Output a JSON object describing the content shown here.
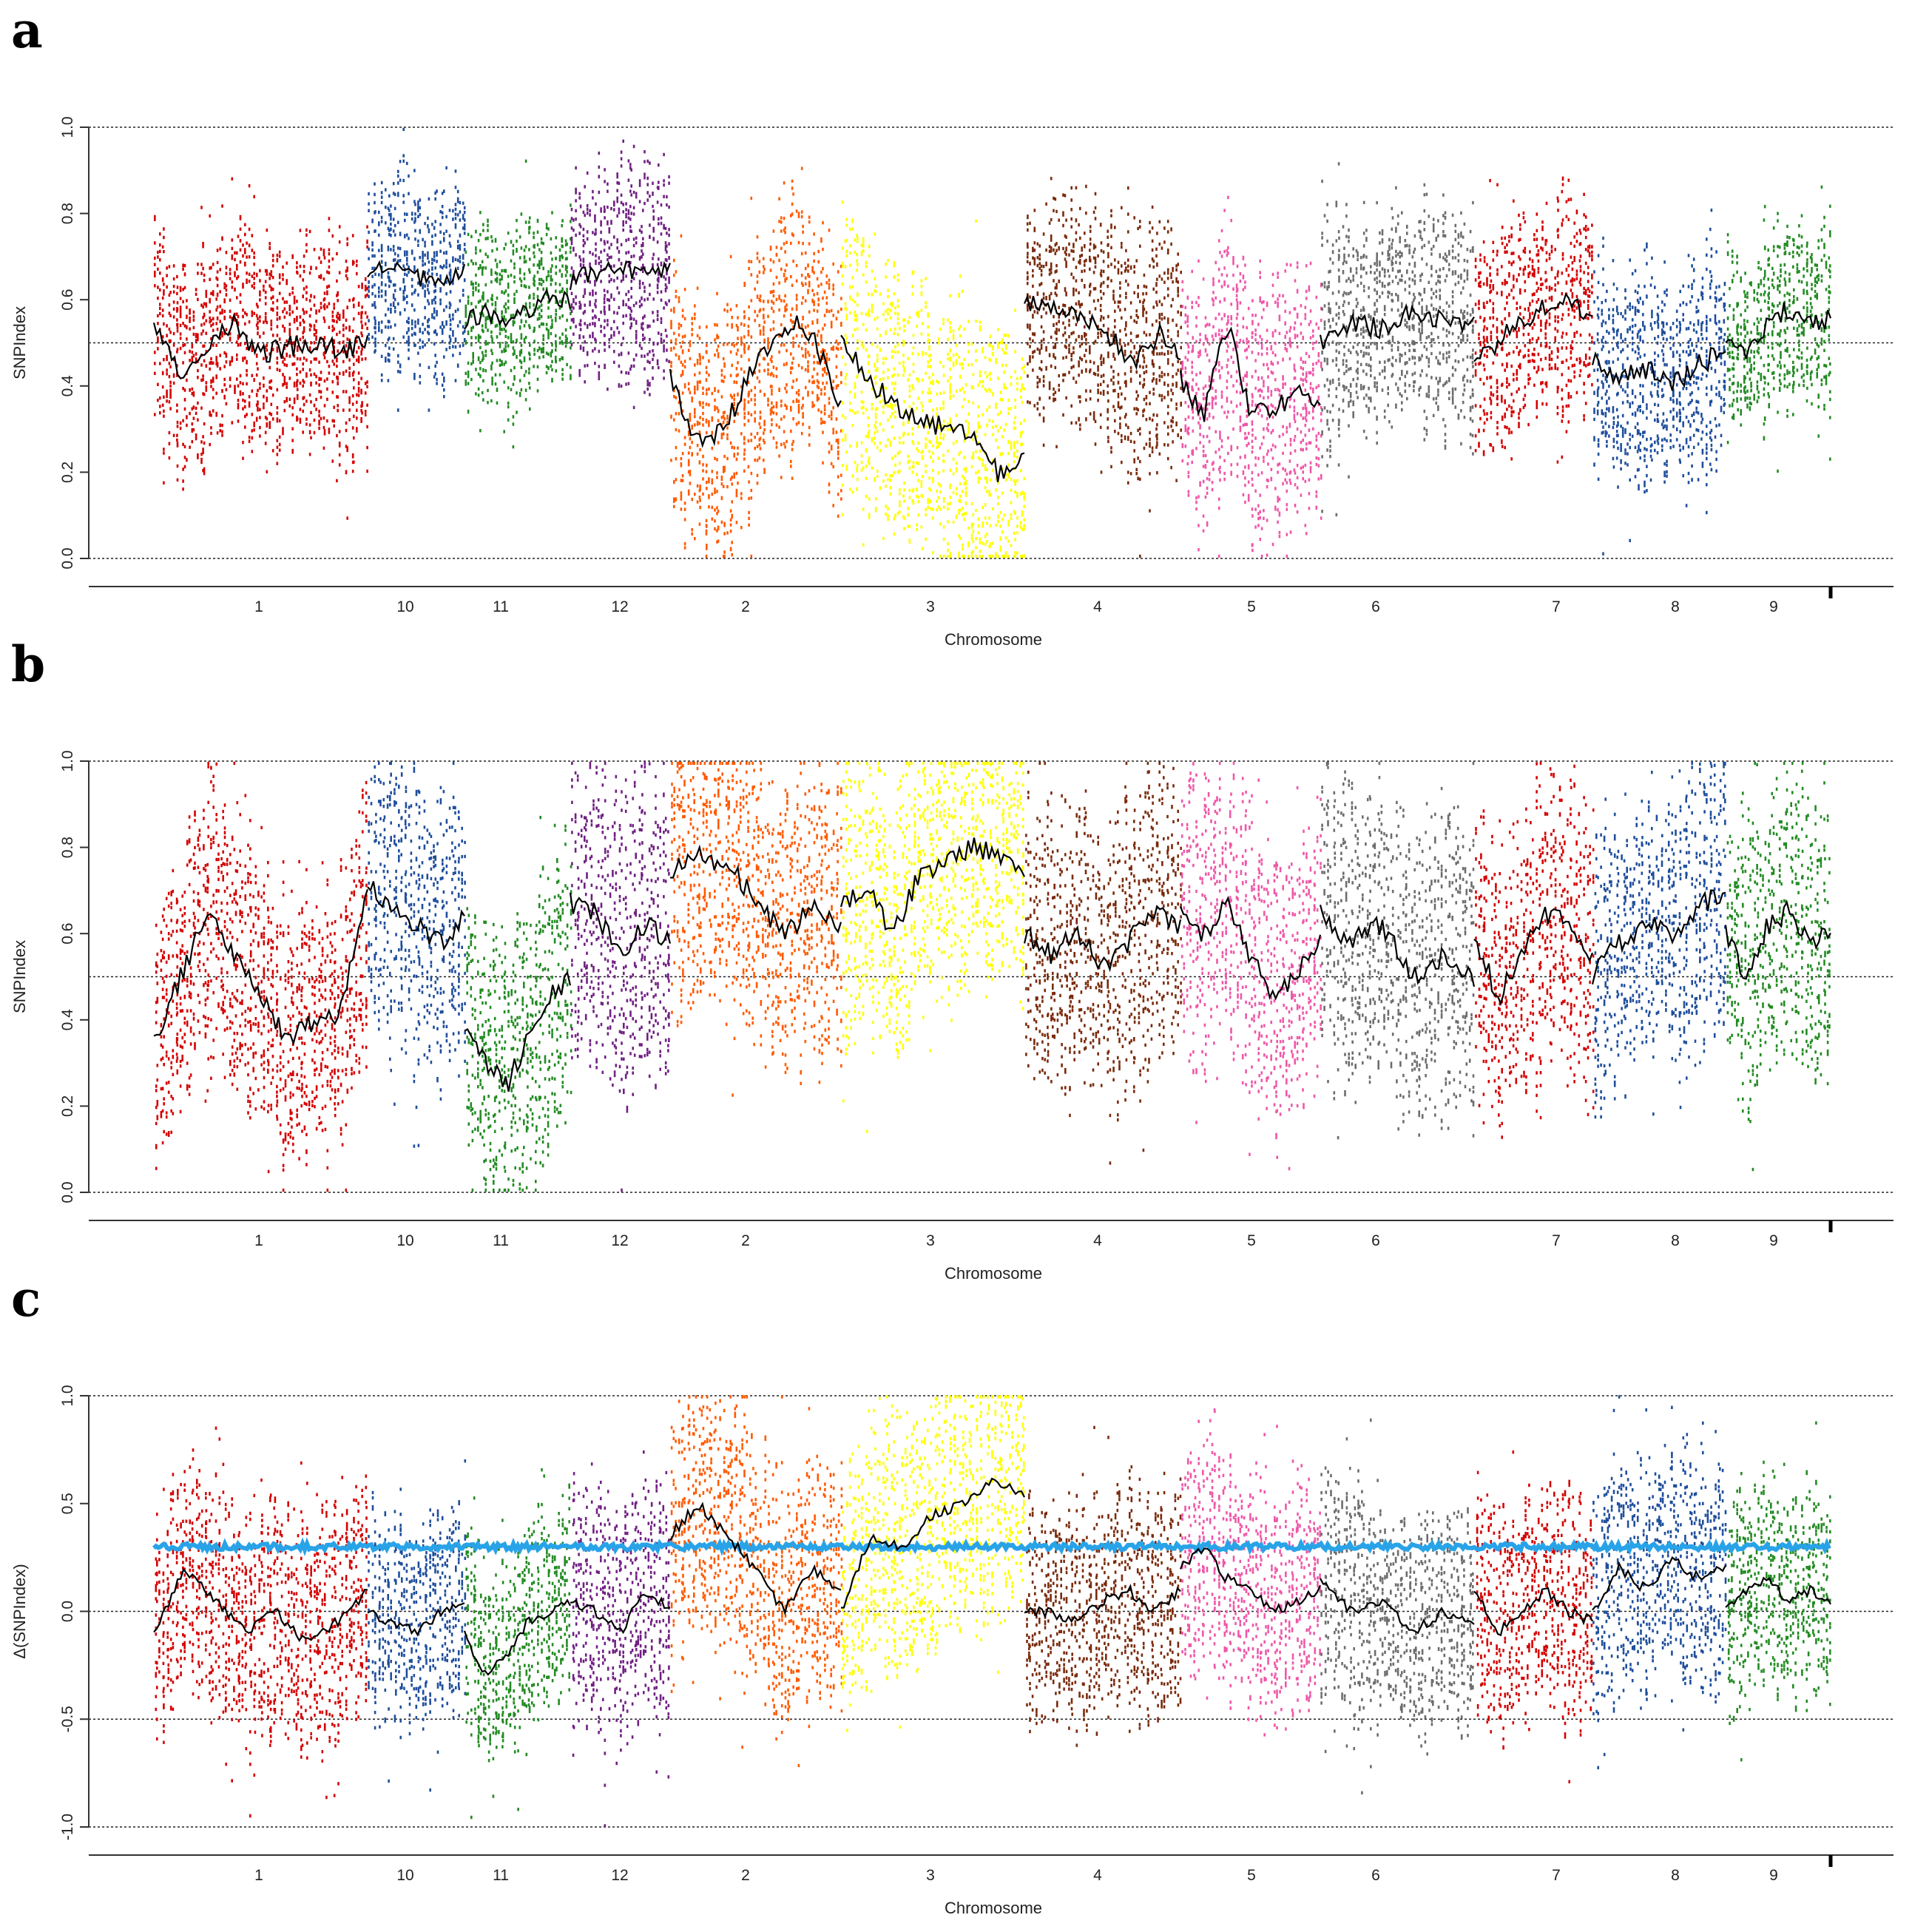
{
  "chart_data": [
    {
      "panel": "a",
      "type": "scatter",
      "xlabel": "Chromosome",
      "ylabel": "SNPIndex",
      "ylim": [
        0,
        1
      ],
      "yticks": [
        0.0,
        0.2,
        0.4,
        0.6,
        0.8,
        1.0
      ],
      "ytick_labels": [
        "0.0",
        "0.2",
        "0.4",
        "0.6",
        "0.8",
        "1.0"
      ],
      "reference_lines": [
        0,
        0.5,
        1
      ],
      "threshold_line": null,
      "chromosomes": [
        {
          "name": "1",
          "color": "#d40000",
          "mean": 0.49,
          "spread": 0.26,
          "trend": [
            0.55,
            0.42,
            0.48,
            0.55,
            0.47,
            0.49,
            0.5,
            0.48,
            0.5
          ]
        },
        {
          "name": "10",
          "color": "#1f4e9c",
          "mean": 0.66,
          "spread": 0.24,
          "trend": [
            0.66,
            0.68,
            0.65,
            0.64,
            0.66
          ]
        },
        {
          "name": "11",
          "color": "#238b23",
          "mean": 0.56,
          "spread": 0.22,
          "trend": [
            0.55,
            0.57,
            0.54,
            0.58,
            0.6,
            0.6
          ]
        },
        {
          "name": "12",
          "color": "#702082",
          "mean": 0.66,
          "spread": 0.26,
          "trend": [
            0.64,
            0.66,
            0.68,
            0.65,
            0.67
          ]
        },
        {
          "name": "2",
          "color": "#ff5a00",
          "mean": 0.4,
          "spread": 0.3,
          "trend": [
            0.42,
            0.3,
            0.27,
            0.35,
            0.45,
            0.5,
            0.56,
            0.48,
            0.36
          ]
        },
        {
          "name": "3",
          "color": "#ffff00",
          "mean": 0.3,
          "spread": 0.32,
          "trend": [
            0.52,
            0.42,
            0.36,
            0.33,
            0.3,
            0.28,
            0.2,
            0.22
          ]
        },
        {
          "name": "4",
          "color": "#7a2a0c",
          "mean": 0.55,
          "spread": 0.28,
          "trend": [
            0.6,
            0.59,
            0.58,
            0.55,
            0.5,
            0.46,
            0.52,
            0.48
          ]
        },
        {
          "name": "5",
          "color": "#ef57a8",
          "mean": 0.4,
          "spread": 0.3,
          "trend": [
            0.42,
            0.33,
            0.55,
            0.33,
            0.35,
            0.38,
            0.36
          ]
        },
        {
          "name": "6",
          "color": "#6d6d6d",
          "mean": 0.55,
          "spread": 0.28,
          "trend": [
            0.5,
            0.55,
            0.53,
            0.58,
            0.55,
            0.54
          ]
        },
        {
          "name": "7",
          "color": "#d40000",
          "mean": 0.54,
          "spread": 0.26,
          "trend": [
            0.47,
            0.5,
            0.55,
            0.58,
            0.6,
            0.56
          ]
        },
        {
          "name": "8",
          "color": "#1f4e9c",
          "mean": 0.44,
          "spread": 0.26,
          "trend": [
            0.46,
            0.42,
            0.44,
            0.4,
            0.45,
            0.48
          ]
        },
        {
          "name": "9",
          "color": "#238b23",
          "mean": 0.53,
          "spread": 0.24,
          "trend": [
            0.5,
            0.48,
            0.55,
            0.58,
            0.54,
            0.56
          ]
        }
      ]
    },
    {
      "panel": "b",
      "type": "scatter",
      "xlabel": "Chromosome",
      "ylabel": "SNPIndex",
      "ylim": [
        0,
        1
      ],
      "yticks": [
        0.0,
        0.2,
        0.4,
        0.6,
        0.8,
        1.0
      ],
      "ytick_labels": [
        "0.0",
        "0.2",
        "0.4",
        "0.6",
        "0.8",
        "1.0"
      ],
      "reference_lines": [
        0,
        0.5,
        1
      ],
      "threshold_line": null,
      "chromosomes": [
        {
          "name": "1",
          "color": "#d40000",
          "mean": 0.48,
          "spread": 0.34,
          "trend": [
            0.35,
            0.5,
            0.65,
            0.55,
            0.45,
            0.35,
            0.4,
            0.42,
            0.7
          ]
        },
        {
          "name": "10",
          "color": "#1f4e9c",
          "mean": 0.65,
          "spread": 0.34,
          "trend": [
            0.72,
            0.66,
            0.62,
            0.58,
            0.64
          ]
        },
        {
          "name": "11",
          "color": "#238b23",
          "mean": 0.38,
          "spread": 0.34,
          "trend": [
            0.38,
            0.3,
            0.25,
            0.35,
            0.45,
            0.5
          ]
        },
        {
          "name": "12",
          "color": "#702082",
          "mean": 0.6,
          "spread": 0.36,
          "trend": [
            0.67,
            0.65,
            0.55,
            0.62,
            0.58
          ]
        },
        {
          "name": "2",
          "color": "#ff5a00",
          "mean": 0.68,
          "spread": 0.34,
          "trend": [
            0.74,
            0.78,
            0.76,
            0.68,
            0.6,
            0.66,
            0.62
          ]
        },
        {
          "name": "3",
          "color": "#ffff00",
          "mean": 0.72,
          "spread": 0.34,
          "trend": [
            0.66,
            0.7,
            0.6,
            0.74,
            0.76,
            0.8,
            0.78,
            0.75
          ]
        },
        {
          "name": "4",
          "color": "#7a2a0c",
          "mean": 0.58,
          "spread": 0.34,
          "trend": [
            0.6,
            0.55,
            0.6,
            0.52,
            0.58,
            0.65,
            0.62
          ]
        },
        {
          "name": "5",
          "color": "#ef57a8",
          "mean": 0.57,
          "spread": 0.34,
          "trend": [
            0.65,
            0.6,
            0.68,
            0.55,
            0.45,
            0.5,
            0.6
          ]
        },
        {
          "name": "6",
          "color": "#6d6d6d",
          "mean": 0.55,
          "spread": 0.36,
          "trend": [
            0.65,
            0.58,
            0.62,
            0.5,
            0.55,
            0.5
          ]
        },
        {
          "name": "7",
          "color": "#d40000",
          "mean": 0.5,
          "spread": 0.36,
          "trend": [
            0.6,
            0.45,
            0.55,
            0.65,
            0.62,
            0.55
          ]
        },
        {
          "name": "8",
          "color": "#1f4e9c",
          "mean": 0.56,
          "spread": 0.34,
          "trend": [
            0.5,
            0.58,
            0.62,
            0.6,
            0.66,
            0.7
          ]
        },
        {
          "name": "9",
          "color": "#238b23",
          "mean": 0.55,
          "spread": 0.34,
          "trend": [
            0.6,
            0.5,
            0.62,
            0.65,
            0.58,
            0.6
          ]
        }
      ]
    },
    {
      "panel": "c",
      "type": "scatter",
      "xlabel": "Chromosome",
      "ylabel": "Δ(SNPIndex)",
      "ylim": [
        -1,
        1
      ],
      "yticks": [
        -1.0,
        -0.5,
        0.0,
        0.5,
        1.0
      ],
      "ytick_labels": [
        "-1.0",
        "-0.5",
        "0.0",
        "0.5",
        "1.0"
      ],
      "reference_lines": [
        -1,
        -0.5,
        0,
        1
      ],
      "threshold_line": {
        "value": 0.3,
        "color": "#29a3e8"
      },
      "chromosomes": [
        {
          "name": "1",
          "color": "#d40000",
          "mean": 0.0,
          "spread": 0.55,
          "trend": [
            -0.1,
            0.2,
            0.05,
            -0.1,
            0.0,
            -0.15,
            -0.05,
            0.1
          ]
        },
        {
          "name": "10",
          "color": "#1f4e9c",
          "mean": -0.05,
          "spread": 0.5,
          "trend": [
            0.0,
            -0.05,
            -0.1,
            0.0,
            0.05
          ]
        },
        {
          "name": "11",
          "color": "#238b23",
          "mean": -0.1,
          "spread": 0.5,
          "trend": [
            -0.1,
            -0.3,
            -0.2,
            -0.05,
            0.0,
            0.05
          ]
        },
        {
          "name": "12",
          "color": "#702082",
          "mean": 0.0,
          "spread": 0.6,
          "trend": [
            0.05,
            0.0,
            -0.1,
            0.1,
            0.0
          ]
        },
        {
          "name": "2",
          "color": "#ff5a00",
          "mean": 0.15,
          "spread": 0.6,
          "trend": [
            0.35,
            0.5,
            0.35,
            0.2,
            0.0,
            0.2,
            0.1
          ]
        },
        {
          "name": "3",
          "color": "#ffff00",
          "mean": 0.3,
          "spread": 0.6,
          "trend": [
            0.0,
            0.35,
            0.3,
            0.45,
            0.5,
            0.6,
            0.55
          ]
        },
        {
          "name": "4",
          "color": "#7a2a0c",
          "mean": 0.0,
          "spread": 0.55,
          "trend": [
            0.0,
            0.0,
            -0.05,
            0.05,
            0.1,
            0.0,
            0.1
          ]
        },
        {
          "name": "5",
          "color": "#ef57a8",
          "mean": 0.15,
          "spread": 0.55,
          "trend": [
            0.2,
            0.3,
            0.15,
            0.1,
            0.0,
            0.05,
            0.1
          ]
        },
        {
          "name": "6",
          "color": "#6d6d6d",
          "mean": 0.0,
          "spread": 0.55,
          "trend": [
            0.15,
            0.0,
            0.05,
            -0.1,
            0.0,
            -0.05
          ]
        },
        {
          "name": "7",
          "color": "#d40000",
          "mean": 0.0,
          "spread": 0.55,
          "trend": [
            0.1,
            -0.1,
            0.0,
            0.1,
            0.0,
            -0.05
          ]
        },
        {
          "name": "8",
          "color": "#1f4e9c",
          "mean": 0.1,
          "spread": 0.55,
          "trend": [
            0.0,
            0.2,
            0.1,
            0.25,
            0.15,
            0.2
          ]
        },
        {
          "name": "9",
          "color": "#238b23",
          "mean": 0.0,
          "spread": 0.5,
          "trend": [
            0.0,
            0.1,
            0.15,
            0.05,
            0.1,
            0.05
          ]
        }
      ]
    }
  ]
}
